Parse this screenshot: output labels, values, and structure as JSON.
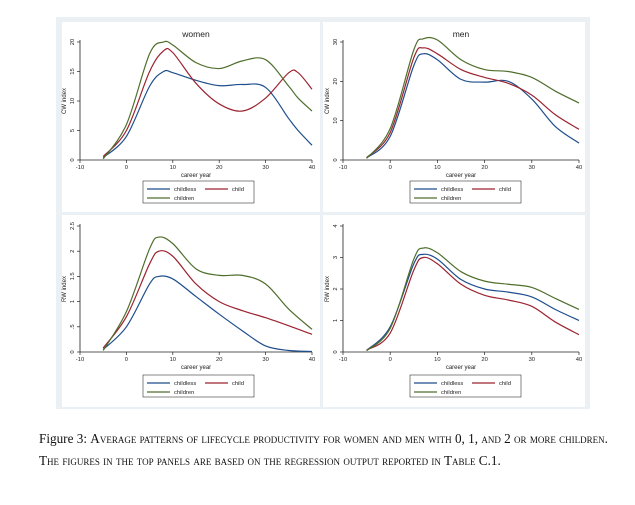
{
  "caption": {
    "label": "Figure 3:",
    "text": "Average patterns of lifecycle productivity for women and men with 0, 1, and 2 or more children. The figures in the top panels are based on the regression output reported in Table C.1."
  },
  "colors": {
    "childless": "#1f4e8c",
    "child": "#9c2430",
    "children": "#4f6e2c",
    "panel_bg": "#eaf0f4"
  },
  "chart_data": [
    {
      "type": "line",
      "title": "women",
      "xlabel": "career year",
      "ylabel": "CW index",
      "xlim": [
        -10,
        40
      ],
      "ylim": [
        0,
        20
      ],
      "xticks": [
        -10,
        0,
        10,
        20,
        30,
        40
      ],
      "yticks": [
        0,
        5,
        10,
        15,
        20
      ],
      "x": [
        -5,
        0,
        5,
        8,
        10,
        15,
        20,
        25,
        30,
        35,
        37,
        40
      ],
      "series": [
        {
          "name": "childless",
          "values": [
            0.4,
            4,
            12.5,
            15,
            14.8,
            13.5,
            12.6,
            12.8,
            12.3,
            7,
            5,
            2.5
          ]
        },
        {
          "name": "child",
          "values": [
            0.6,
            5,
            15,
            18.5,
            18.2,
            13,
            9.5,
            8.3,
            10.5,
            14.8,
            14.8,
            12
          ]
        },
        {
          "name": "children",
          "values": [
            0.2,
            6,
            18,
            20,
            19.5,
            16.5,
            15.5,
            16.8,
            17,
            12.5,
            10.5,
            8.3
          ]
        }
      ],
      "legend": {
        "position": "bottom",
        "items": [
          "childless",
          "child",
          "children"
        ]
      },
      "grid": false
    },
    {
      "type": "line",
      "title": "men",
      "xlabel": "career year",
      "ylabel": "CW index",
      "xlim": [
        -10,
        40
      ],
      "ylim": [
        0,
        30
      ],
      "xticks": [
        -10,
        0,
        10,
        20,
        30,
        40
      ],
      "yticks": [
        0,
        10,
        20,
        30
      ],
      "x": [
        -5,
        0,
        5,
        7,
        10,
        15,
        20,
        25,
        30,
        35,
        40
      ],
      "series": [
        {
          "name": "childless",
          "values": [
            0.5,
            6,
            24,
            27,
            25.5,
            20.5,
            19.8,
            20,
            15.5,
            8.5,
            4.3
          ]
        },
        {
          "name": "child",
          "values": [
            0.6,
            7,
            26,
            28.5,
            27,
            23,
            21,
            19.5,
            16.5,
            11.5,
            7.8
          ]
        },
        {
          "name": "children",
          "values": [
            0.4,
            8,
            28,
            30.8,
            30.5,
            25.5,
            23,
            22.5,
            21,
            17.5,
            14.5
          ]
        }
      ],
      "legend": {
        "position": "bottom",
        "items": [
          "childless",
          "child",
          "children"
        ]
      },
      "grid": false
    },
    {
      "type": "line",
      "title": "",
      "xlabel": "career year",
      "ylabel": "RW index",
      "xlim": [
        -10,
        40
      ],
      "ylim": [
        0,
        2.5
      ],
      "xticks": [
        -10,
        0,
        10,
        20,
        30,
        40
      ],
      "yticks": [
        0,
        0.5,
        1,
        1.5,
        2,
        2.5
      ],
      "ytick_labels": [
        "0",
        ".5",
        "1",
        "1.5",
        "2",
        "2.5"
      ],
      "x": [
        -5,
        0,
        5,
        7,
        10,
        15,
        20,
        25,
        30,
        35,
        40
      ],
      "series": [
        {
          "name": "childless",
          "values": [
            0.05,
            0.5,
            1.35,
            1.5,
            1.45,
            1.1,
            0.75,
            0.42,
            0.12,
            0.03,
            0.01
          ]
        },
        {
          "name": "child",
          "values": [
            0.08,
            0.7,
            1.75,
            2.0,
            1.9,
            1.35,
            1.0,
            0.82,
            0.68,
            0.52,
            0.35
          ]
        },
        {
          "name": "children",
          "values": [
            0.03,
            0.8,
            2.05,
            2.28,
            2.15,
            1.65,
            1.52,
            1.52,
            1.35,
            0.85,
            0.45
          ]
        }
      ],
      "legend": {
        "position": "bottom",
        "items": [
          "childless",
          "child",
          "children"
        ]
      },
      "grid": false
    },
    {
      "type": "line",
      "title": "",
      "xlabel": "career year",
      "ylabel": "RW index",
      "xlim": [
        -10,
        40
      ],
      "ylim": [
        0,
        4
      ],
      "xticks": [
        -10,
        0,
        10,
        20,
        30,
        40
      ],
      "yticks": [
        0,
        1,
        2,
        3,
        4
      ],
      "x": [
        -5,
        0,
        5,
        7,
        10,
        15,
        20,
        25,
        30,
        35,
        40
      ],
      "series": [
        {
          "name": "childless",
          "values": [
            0.05,
            0.8,
            2.8,
            3.1,
            2.95,
            2.3,
            2.0,
            1.9,
            1.75,
            1.35,
            1.0
          ]
        },
        {
          "name": "child",
          "values": [
            0.06,
            0.6,
            2.6,
            3.0,
            2.8,
            2.15,
            1.8,
            1.65,
            1.45,
            0.95,
            0.55
          ]
        },
        {
          "name": "children",
          "values": [
            0.04,
            0.75,
            2.95,
            3.3,
            3.15,
            2.55,
            2.25,
            2.15,
            2.05,
            1.7,
            1.35
          ]
        }
      ],
      "legend": {
        "position": "bottom",
        "items": [
          "childless",
          "child",
          "children"
        ]
      },
      "grid": false
    }
  ]
}
